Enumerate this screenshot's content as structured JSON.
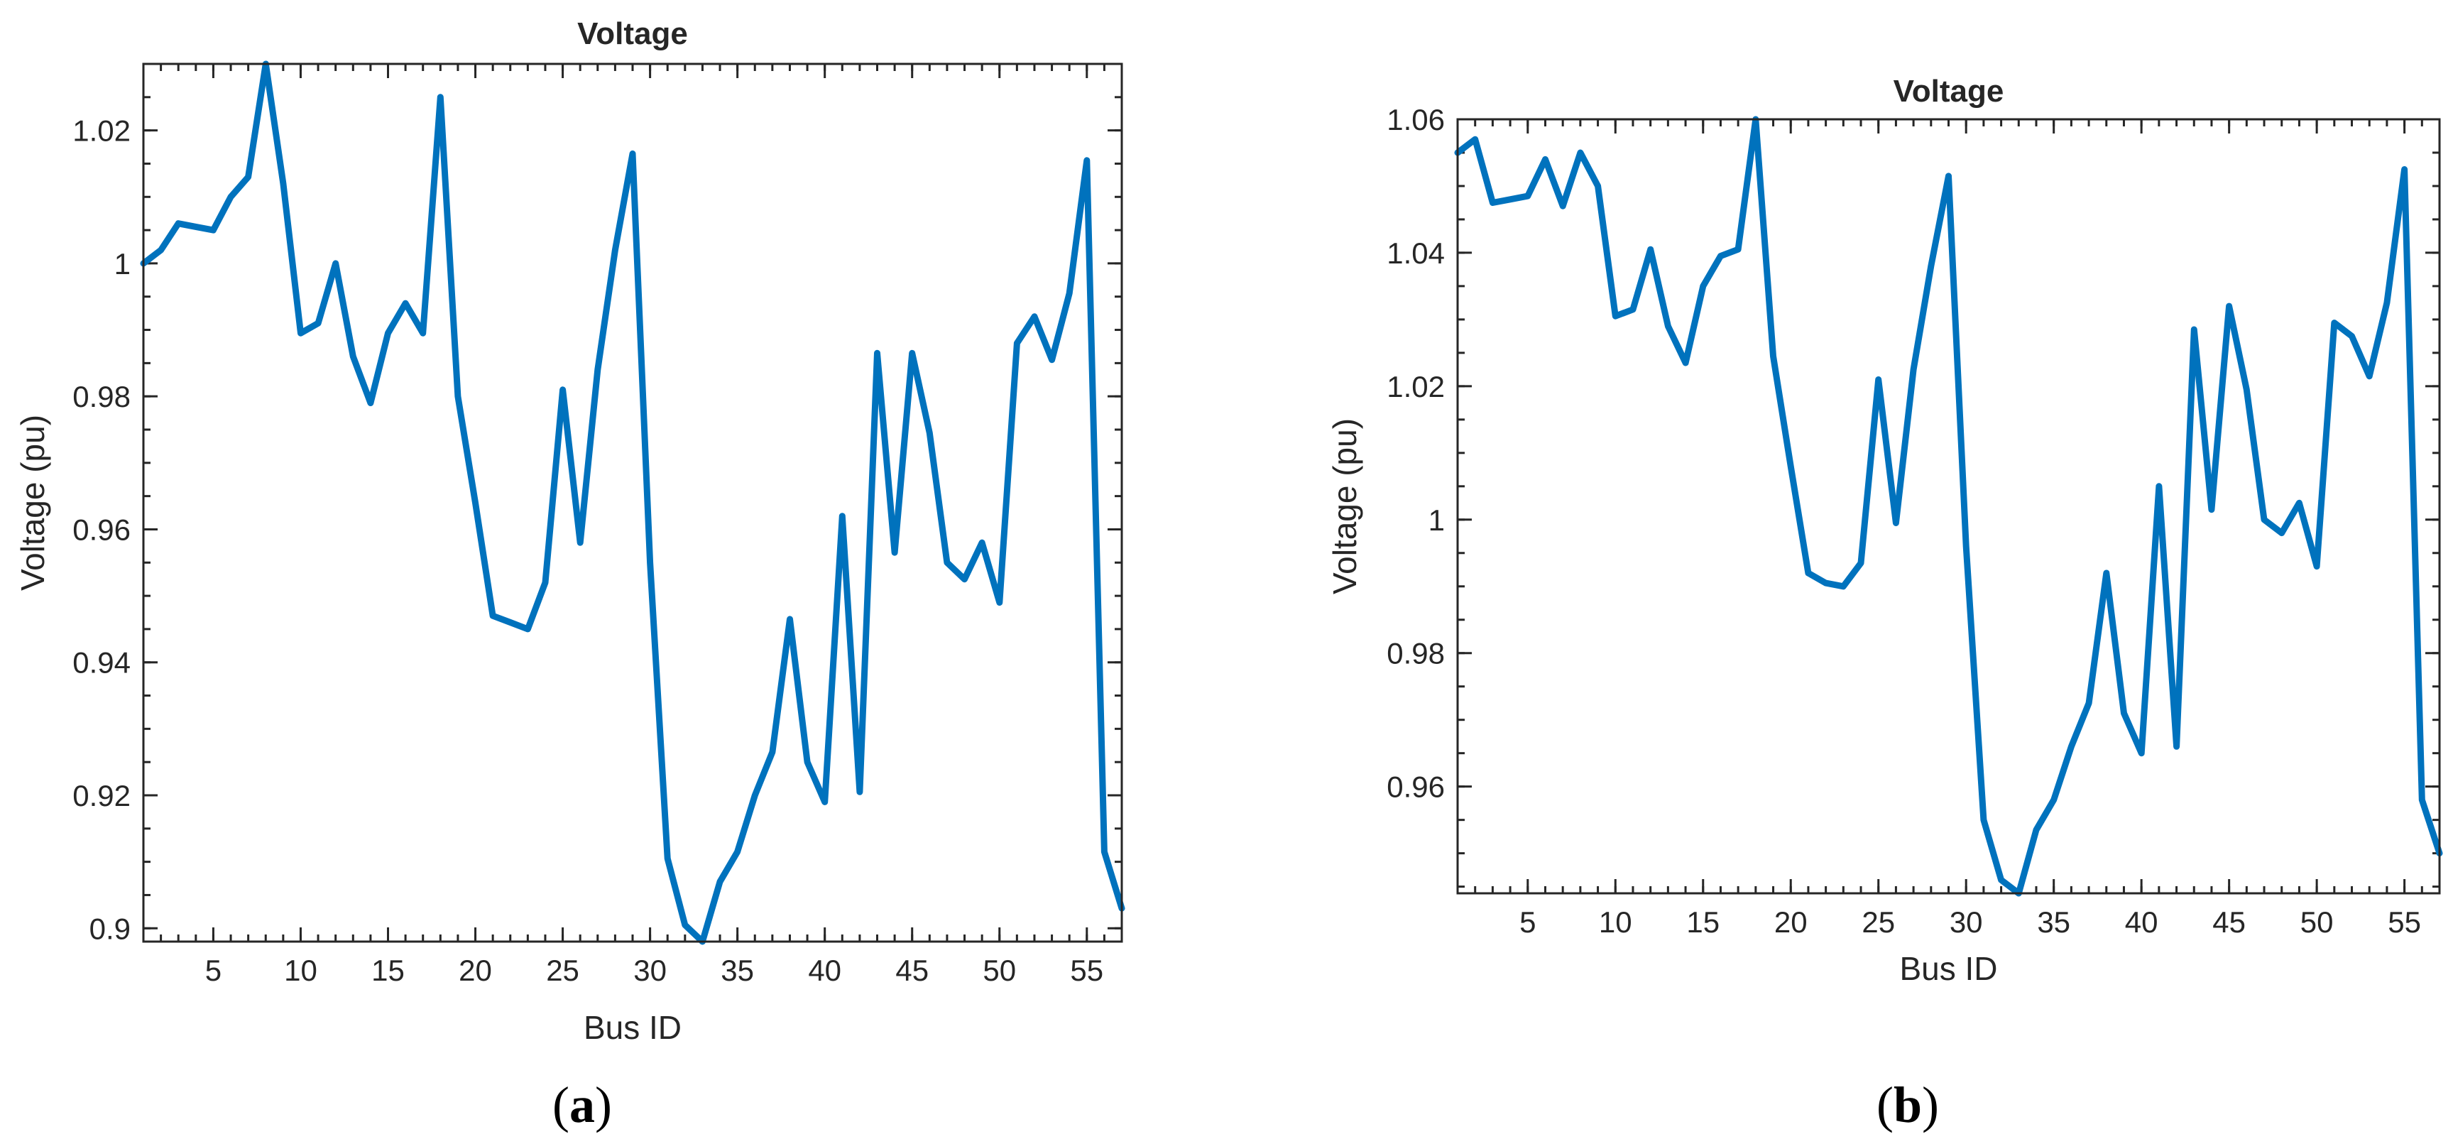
{
  "chart_data": [
    {
      "type": "line",
      "panel_label": "a",
      "title": "Voltage",
      "xlabel": "Bus ID",
      "ylabel": "Voltage (pu)",
      "xlim": [
        1,
        57
      ],
      "ylim": [
        0.898,
        1.03
      ],
      "xticks": [
        5,
        10,
        15,
        20,
        25,
        30,
        35,
        40,
        45,
        50,
        55
      ],
      "yticks": [
        0.9,
        0.92,
        0.94,
        0.96,
        0.98,
        1,
        1.02
      ],
      "ytick_labels": [
        "0.9",
        "0.92",
        "0.94",
        "0.96",
        "0.98",
        "1",
        "1.02"
      ],
      "color": "#0072bd",
      "series": [
        {
          "x": [
            1,
            2,
            3,
            4,
            5,
            6,
            7,
            8,
            9,
            10,
            11,
            12,
            13,
            14,
            15,
            16,
            17,
            18,
            19,
            20,
            21,
            22,
            23,
            24,
            25,
            26,
            27,
            28,
            29,
            30,
            31,
            32,
            33,
            34,
            35,
            36,
            37,
            38,
            39,
            40,
            41,
            42,
            43,
            44,
            45,
            46,
            47,
            48,
            49,
            50,
            51,
            52,
            53,
            54,
            55,
            56,
            57
          ],
          "values": [
            1.0,
            1.002,
            1.006,
            1.0055,
            1.005,
            1.01,
            1.013,
            1.03,
            1.012,
            0.9895,
            0.991,
            1.0,
            0.986,
            0.979,
            0.9895,
            0.994,
            0.9895,
            1.025,
            0.98,
            0.964,
            0.947,
            0.946,
            0.945,
            0.952,
            0.981,
            0.958,
            0.984,
            1.002,
            1.0165,
            0.955,
            0.9105,
            0.9005,
            0.898,
            0.907,
            0.9115,
            0.92,
            0.9265,
            0.9465,
            0.925,
            0.919,
            0.962,
            0.9205,
            0.9865,
            0.9565,
            0.9865,
            0.9745,
            0.955,
            0.9525,
            0.958,
            0.949,
            0.988,
            0.992,
            0.9855,
            0.9955,
            1.0155,
            0.9115,
            0.903
          ]
        }
      ]
    },
    {
      "type": "line",
      "panel_label": "b",
      "title": "Voltage",
      "xlabel": "Bus ID",
      "ylabel": "Voltage (pu)",
      "xlim": [
        1,
        57
      ],
      "ylim": [
        0.944,
        1.06
      ],
      "xticks": [
        5,
        10,
        15,
        20,
        25,
        30,
        35,
        40,
        45,
        50,
        55
      ],
      "yticks": [
        0.96,
        0.98,
        1,
        1.02,
        1.04,
        1.06
      ],
      "ytick_labels": [
        "0.96",
        "0.98",
        "1",
        "1.02",
        "1.04",
        "1.06"
      ],
      "color": "#0072bd",
      "series": [
        {
          "x": [
            1,
            2,
            3,
            4,
            5,
            6,
            7,
            8,
            9,
            10,
            11,
            12,
            13,
            14,
            15,
            16,
            17,
            18,
            19,
            20,
            21,
            22,
            23,
            24,
            25,
            26,
            27,
            28,
            29,
            30,
            31,
            32,
            33,
            34,
            35,
            36,
            37,
            38,
            39,
            40,
            41,
            42,
            43,
            44,
            45,
            46,
            47,
            48,
            49,
            50,
            51,
            52,
            53,
            54,
            55,
            56,
            57
          ],
          "values": [
            1.055,
            1.057,
            1.0475,
            1.048,
            1.0485,
            1.054,
            1.047,
            1.055,
            1.05,
            1.0305,
            1.0315,
            1.0405,
            1.029,
            1.0235,
            1.035,
            1.0395,
            1.0405,
            1.06,
            1.0245,
            1.008,
            0.992,
            0.9905,
            0.99,
            0.9935,
            1.021,
            0.9995,
            1.0225,
            1.038,
            1.0515,
            0.996,
            0.955,
            0.946,
            0.944,
            0.9535,
            0.958,
            0.966,
            0.9725,
            0.992,
            0.971,
            0.965,
            1.005,
            0.966,
            1.0285,
            1.0015,
            1.032,
            1.0195,
            1.0,
            0.998,
            1.0025,
            0.993,
            1.0295,
            1.0275,
            1.0215,
            1.0325,
            1.0525,
            0.958,
            0.95
          ]
        }
      ]
    }
  ]
}
